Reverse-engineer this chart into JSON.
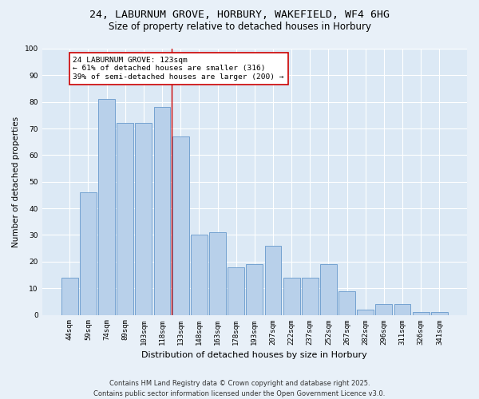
{
  "title_line1": "24, LABURNUM GROVE, HORBURY, WAKEFIELD, WF4 6HG",
  "title_line2": "Size of property relative to detached houses in Horbury",
  "xlabel": "Distribution of detached houses by size in Horbury",
  "ylabel": "Number of detached properties",
  "bar_color": "#b8d0ea",
  "bar_edge_color": "#6699cc",
  "background_color": "#dce9f5",
  "grid_color": "#ffffff",
  "fig_background": "#e8f0f8",
  "categories": [
    "44sqm",
    "59sqm",
    "74sqm",
    "89sqm",
    "103sqm",
    "118sqm",
    "133sqm",
    "148sqm",
    "163sqm",
    "178sqm",
    "193sqm",
    "207sqm",
    "222sqm",
    "237sqm",
    "252sqm",
    "267sqm",
    "282sqm",
    "296sqm",
    "311sqm",
    "326sqm",
    "341sqm"
  ],
  "values": [
    14,
    46,
    81,
    72,
    72,
    78,
    67,
    30,
    31,
    18,
    19,
    26,
    14,
    14,
    19,
    9,
    2,
    4,
    4,
    1,
    1
  ],
  "vline_x": 5.5,
  "vline_color": "#cc0000",
  "annotation_line1": "24 LABURNUM GROVE: 123sqm",
  "annotation_line2": "← 61% of detached houses are smaller (316)",
  "annotation_line3": "39% of semi-detached houses are larger (200) →",
  "annotation_box_color": "#ffffff",
  "annotation_box_edge": "#cc0000",
  "ylim": [
    0,
    100
  ],
  "yticks": [
    0,
    10,
    20,
    30,
    40,
    50,
    60,
    70,
    80,
    90,
    100
  ],
  "footer_line1": "Contains HM Land Registry data © Crown copyright and database right 2025.",
  "footer_line2": "Contains public sector information licensed under the Open Government Licence v3.0.",
  "title_fontsize": 9.5,
  "subtitle_fontsize": 8.5,
  "axis_label_fontsize": 7.5,
  "tick_fontsize": 6.5,
  "annotation_fontsize": 6.8,
  "footer_fontsize": 6.0
}
